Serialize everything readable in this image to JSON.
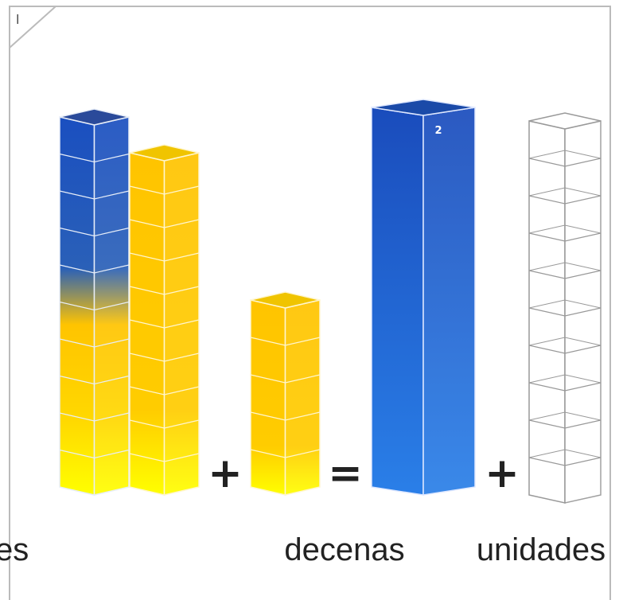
{
  "corner_label": "l",
  "tens_value": "2",
  "operators": [
    "+",
    "=",
    "+"
  ],
  "labels": [
    "es",
    "decenas",
    "unidades"
  ]
}
